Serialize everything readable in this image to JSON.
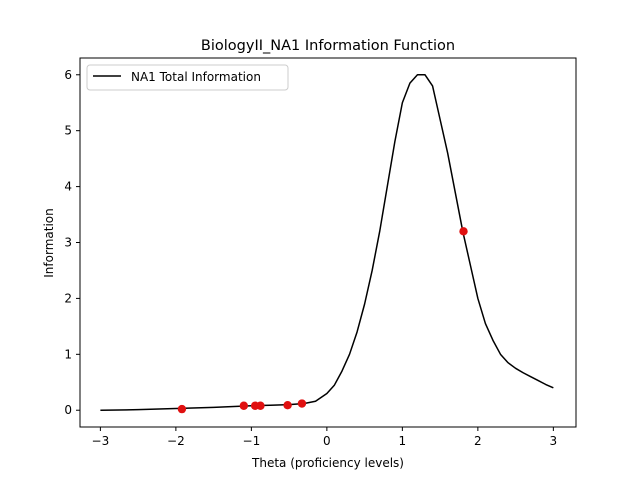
{
  "chart_data": {
    "type": "line",
    "title": "BiologyII_NA1 Information Function",
    "xlabel": "Theta (proficiency levels)",
    "ylabel": "Information",
    "xlim": [
      -3.27,
      3.3
    ],
    "ylim": [
      -0.3,
      6.3
    ],
    "xticks": [
      -3,
      -2,
      -1,
      0,
      1,
      2,
      3
    ],
    "yticks": [
      0,
      1,
      2,
      3,
      4,
      5,
      6
    ],
    "grid": false,
    "legend_position": "top-left",
    "series": [
      {
        "name": "NA1 Total Information",
        "color": "#000000",
        "x": [
          -3.0,
          -2.5,
          -2.0,
          -1.5,
          -1.0,
          -0.75,
          -0.5,
          -0.3,
          -0.15,
          0.0,
          0.1,
          0.2,
          0.3,
          0.4,
          0.5,
          0.6,
          0.7,
          0.8,
          0.9,
          1.0,
          1.1,
          1.2,
          1.3,
          1.4,
          1.5,
          1.6,
          1.7,
          1.8,
          1.9,
          2.0,
          2.1,
          2.2,
          2.3,
          2.4,
          2.5,
          2.6,
          2.7,
          2.8,
          2.9,
          3.0
        ],
        "y": [
          0.0,
          0.01,
          0.03,
          0.05,
          0.08,
          0.09,
          0.1,
          0.12,
          0.16,
          0.3,
          0.45,
          0.7,
          1.0,
          1.4,
          1.9,
          2.5,
          3.2,
          4.0,
          4.8,
          5.5,
          5.85,
          6.0,
          6.0,
          5.8,
          5.2,
          4.6,
          3.9,
          3.2,
          2.6,
          2.0,
          1.55,
          1.25,
          1.0,
          0.85,
          0.75,
          0.67,
          0.6,
          0.53,
          0.46,
          0.4
        ]
      },
      {
        "name": "",
        "type": "scatter",
        "color": "#e01010",
        "x": [
          -1.92,
          -1.1,
          -0.95,
          -0.88,
          -0.52,
          -0.33,
          1.81
        ],
        "y": [
          0.02,
          0.08,
          0.08,
          0.08,
          0.09,
          0.12,
          3.2
        ]
      }
    ]
  }
}
